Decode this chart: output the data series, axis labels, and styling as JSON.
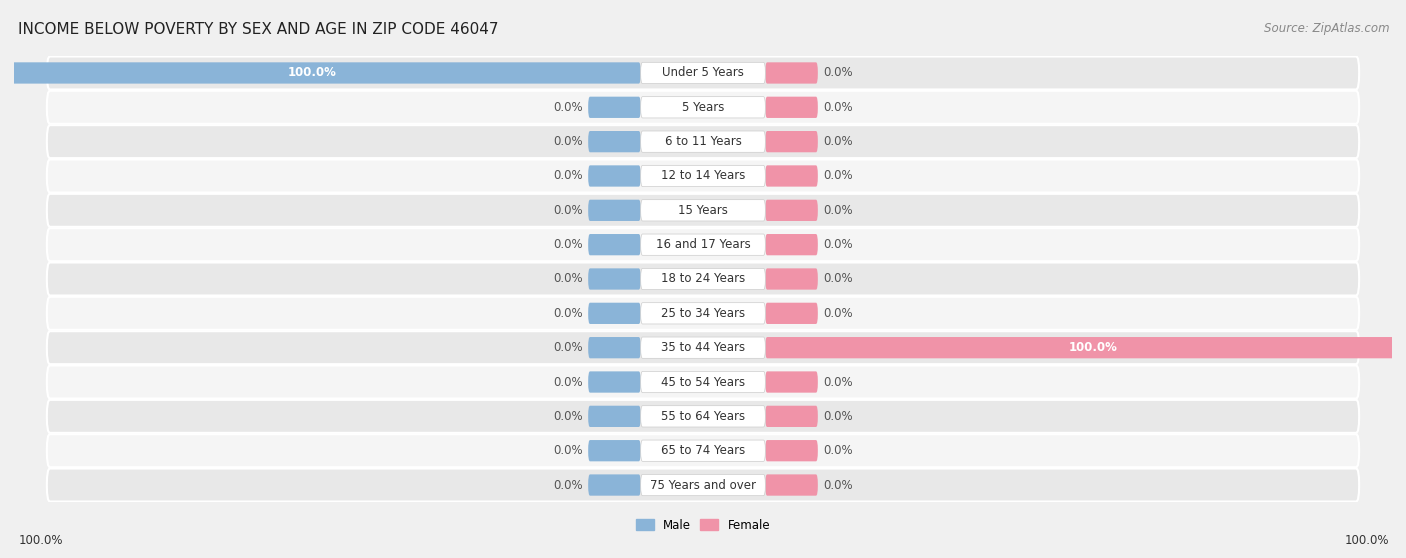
{
  "title": "INCOME BELOW POVERTY BY SEX AND AGE IN ZIP CODE 46047",
  "source": "Source: ZipAtlas.com",
  "categories": [
    "Under 5 Years",
    "5 Years",
    "6 to 11 Years",
    "12 to 14 Years",
    "15 Years",
    "16 and 17 Years",
    "18 to 24 Years",
    "25 to 34 Years",
    "35 to 44 Years",
    "45 to 54 Years",
    "55 to 64 Years",
    "65 to 74 Years",
    "75 Years and over"
  ],
  "male_values": [
    100.0,
    0.0,
    0.0,
    0.0,
    0.0,
    0.0,
    0.0,
    0.0,
    0.0,
    0.0,
    0.0,
    0.0,
    0.0
  ],
  "female_values": [
    0.0,
    0.0,
    0.0,
    0.0,
    0.0,
    0.0,
    0.0,
    0.0,
    100.0,
    0.0,
    0.0,
    0.0,
    0.0
  ],
  "male_color": "#8ab4d8",
  "female_color": "#f093a8",
  "male_label": "Male",
  "female_label": "Female",
  "bg_color": "#f0f0f0",
  "row_color_odd": "#e8e8e8",
  "row_color_even": "#f5f5f5",
  "pill_bg": "#dde8f0",
  "pill_female_bg": "#f5d5dc",
  "title_fontsize": 11,
  "source_fontsize": 8.5,
  "label_fontsize": 8.5,
  "category_fontsize": 8.5,
  "bar_height": 0.62,
  "xlim": 100,
  "default_bar_width": 8
}
